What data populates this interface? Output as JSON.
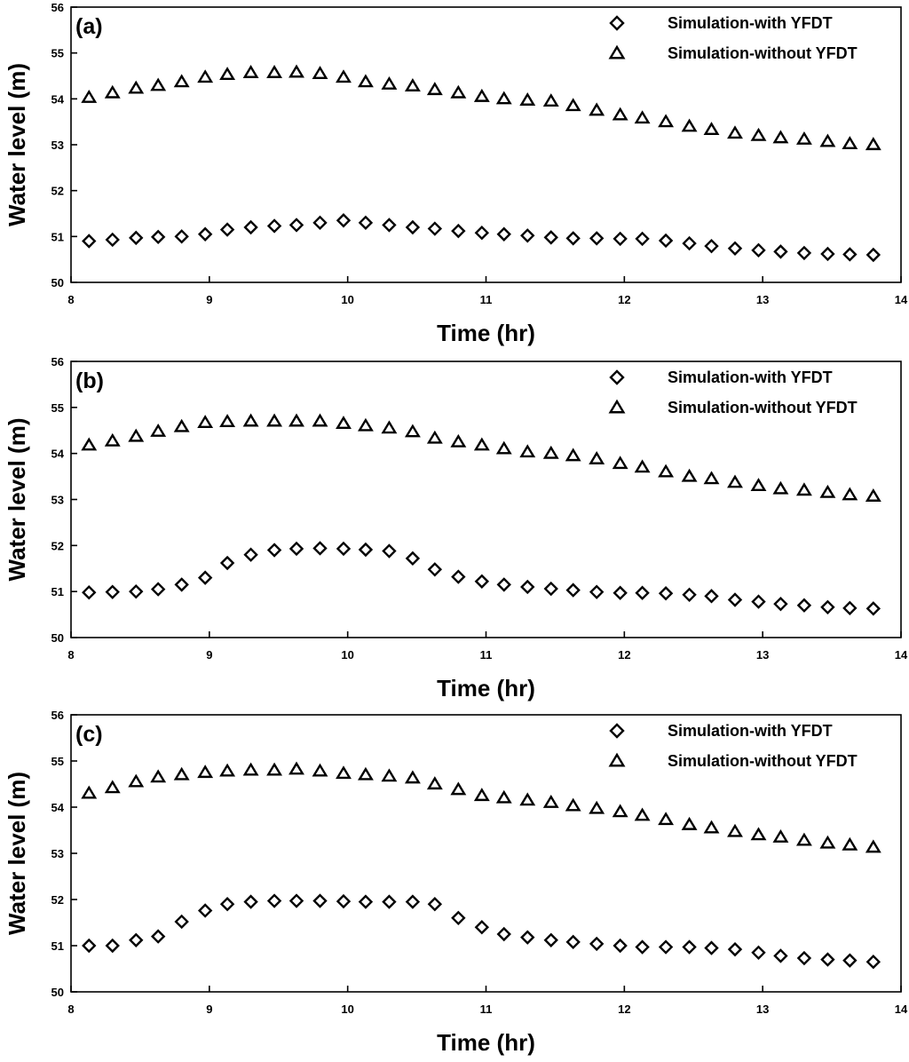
{
  "chart_data": [
    {
      "type": "scatter",
      "panel_label": "(a)",
      "xlabel": "Time (hr)",
      "ylabel": "Water level (m)",
      "xlim": [
        8,
        14
      ],
      "ylim": [
        50,
        56
      ],
      "x_ticks": [
        8,
        9,
        10,
        11,
        12,
        13,
        14
      ],
      "y_ticks": [
        50,
        51,
        52,
        53,
        54,
        55,
        56
      ],
      "legend_position": "top-right",
      "x": [
        8.13,
        8.3,
        8.47,
        8.63,
        8.8,
        8.97,
        9.13,
        9.3,
        9.47,
        9.63,
        9.8,
        9.97,
        10.13,
        10.3,
        10.47,
        10.63,
        10.8,
        10.97,
        11.13,
        11.3,
        11.47,
        11.63,
        11.8,
        11.97,
        12.13,
        12.3,
        12.47,
        12.63,
        12.8,
        12.97,
        13.13,
        13.3,
        13.47,
        13.63,
        13.8
      ],
      "series": [
        {
          "name": "Simulation-with YFDT",
          "marker": "diamond",
          "values": [
            50.9,
            50.93,
            50.97,
            50.99,
            51.0,
            51.05,
            51.15,
            51.2,
            51.23,
            51.25,
            51.3,
            51.35,
            51.3,
            51.25,
            51.2,
            51.17,
            51.12,
            51.08,
            51.05,
            51.02,
            50.98,
            50.96,
            50.96,
            50.95,
            50.95,
            50.91,
            50.85,
            50.79,
            50.74,
            50.7,
            50.67,
            50.64,
            50.62,
            50.61,
            50.6
          ]
        },
        {
          "name": "Simulation-without YFDT",
          "marker": "triangle",
          "values": [
            54.03,
            54.13,
            54.23,
            54.29,
            54.37,
            54.47,
            54.53,
            54.57,
            54.57,
            54.58,
            54.55,
            54.47,
            54.37,
            54.32,
            54.28,
            54.2,
            54.13,
            54.05,
            54.0,
            53.97,
            53.95,
            53.85,
            53.75,
            53.65,
            53.58,
            53.5,
            53.4,
            53.33,
            53.25,
            53.2,
            53.15,
            53.12,
            53.07,
            53.02,
            53.0
          ]
        }
      ]
    },
    {
      "type": "scatter",
      "panel_label": "(b)",
      "xlabel": "Time (hr)",
      "ylabel": "Water level (m)",
      "xlim": [
        8,
        14
      ],
      "ylim": [
        50,
        56
      ],
      "x_ticks": [
        8,
        9,
        10,
        11,
        12,
        13,
        14
      ],
      "y_ticks": [
        50,
        51,
        52,
        53,
        54,
        55,
        56
      ],
      "legend_position": "top-right",
      "x": [
        8.13,
        8.3,
        8.47,
        8.63,
        8.8,
        8.97,
        9.13,
        9.3,
        9.47,
        9.63,
        9.8,
        9.97,
        10.13,
        10.3,
        10.47,
        10.63,
        10.8,
        10.97,
        11.13,
        11.3,
        11.47,
        11.63,
        11.8,
        11.97,
        12.13,
        12.3,
        12.47,
        12.63,
        12.8,
        12.97,
        13.13,
        13.3,
        13.47,
        13.63,
        13.8
      ],
      "series": [
        {
          "name": "Simulation-with YFDT",
          "marker": "diamond",
          "values": [
            50.98,
            50.99,
            51.0,
            51.05,
            51.15,
            51.3,
            51.62,
            51.8,
            51.9,
            51.93,
            51.94,
            51.93,
            51.91,
            51.88,
            51.72,
            51.48,
            51.32,
            51.22,
            51.15,
            51.1,
            51.06,
            51.03,
            50.99,
            50.97,
            50.97,
            50.96,
            50.93,
            50.9,
            50.82,
            50.78,
            50.73,
            50.7,
            50.66,
            50.64,
            50.63
          ]
        },
        {
          "name": "Simulation-without YFDT",
          "marker": "triangle",
          "values": [
            54.18,
            54.27,
            54.37,
            54.48,
            54.58,
            54.67,
            54.69,
            54.7,
            54.7,
            54.7,
            54.7,
            54.65,
            54.6,
            54.55,
            54.47,
            54.33,
            54.25,
            54.18,
            54.1,
            54.03,
            54.0,
            53.95,
            53.88,
            53.78,
            53.7,
            53.6,
            53.5,
            53.45,
            53.37,
            53.3,
            53.23,
            53.2,
            53.15,
            53.1,
            53.07
          ]
        }
      ]
    },
    {
      "type": "scatter",
      "panel_label": "(c)",
      "xlabel": "Time (hr)",
      "ylabel": "Water level (m)",
      "xlim": [
        8,
        14
      ],
      "ylim": [
        50,
        56
      ],
      "x_ticks": [
        8,
        9,
        10,
        11,
        12,
        13,
        14
      ],
      "y_ticks": [
        50,
        51,
        52,
        53,
        54,
        55,
        56
      ],
      "legend_position": "top-right",
      "x": [
        8.13,
        8.3,
        8.47,
        8.63,
        8.8,
        8.97,
        9.13,
        9.3,
        9.47,
        9.63,
        9.8,
        9.97,
        10.13,
        10.3,
        10.47,
        10.63,
        10.8,
        10.97,
        11.13,
        11.3,
        11.47,
        11.63,
        11.8,
        11.97,
        12.13,
        12.3,
        12.47,
        12.63,
        12.8,
        12.97,
        13.13,
        13.3,
        13.47,
        13.63,
        13.8
      ],
      "series": [
        {
          "name": "Simulation-with YFDT",
          "marker": "diamond",
          "values": [
            51.0,
            51.0,
            51.12,
            51.2,
            51.52,
            51.76,
            51.9,
            51.95,
            51.97,
            51.97,
            51.97,
            51.96,
            51.95,
            51.95,
            51.95,
            51.9,
            51.6,
            51.4,
            51.25,
            51.18,
            51.12,
            51.08,
            51.04,
            51.0,
            50.97,
            50.97,
            50.97,
            50.95,
            50.92,
            50.85,
            50.78,
            50.73,
            50.7,
            50.68,
            50.65
          ]
        },
        {
          "name": "Simulation-without YFDT",
          "marker": "triangle",
          "values": [
            54.3,
            54.42,
            54.55,
            54.65,
            54.7,
            54.75,
            54.78,
            54.8,
            54.8,
            54.82,
            54.78,
            54.73,
            54.7,
            54.67,
            54.63,
            54.5,
            54.38,
            54.25,
            54.2,
            54.15,
            54.1,
            54.03,
            53.97,
            53.9,
            53.82,
            53.73,
            53.62,
            53.55,
            53.47,
            53.4,
            53.35,
            53.28,
            53.22,
            53.18,
            53.13
          ]
        }
      ]
    }
  ]
}
